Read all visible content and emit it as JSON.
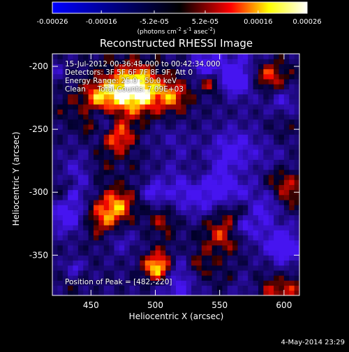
{
  "colorbar": {
    "tick_labels": [
      "-0.00026",
      "-0.00016",
      "-5.2e-05",
      "5.2e-05",
      "0.00016",
      "0.00026"
    ],
    "tick_values": [
      -0.00026,
      -0.00016,
      -5.2e-05,
      5.2e-05,
      0.00016,
      0.00026
    ],
    "units_prefix": "(photons cm",
    "units_sup1": "-2",
    "units_mid1": " s",
    "units_sup2": "-1",
    "units_mid2": " asec",
    "units_sup3": "-2",
    "units_suffix": ")",
    "range": [
      -0.00026,
      0.00026
    ],
    "colors": [
      "#0000ff",
      "#000000",
      "#ff0000",
      "#ffff00",
      "#ffffff"
    ]
  },
  "plot": {
    "title": "Reconstructed RHESSI Image",
    "info_lines": [
      "15-Jul-2012 00:36:48.000 to 00:42:34.000",
      "Detectors: 3F 5F 6F 7F 8F 9F, Att 0",
      "Energy Range: 25.0 - 50.0 keV",
      "Clean     Total Counts: 7.09E+03"
    ],
    "peak_text": "Position of Peak = [482,-220]",
    "footer": "4-May-2014 23:29"
  },
  "chart_data": {
    "type": "heatmap",
    "title": "Reconstructed RHESSI Image",
    "xlabel": "Heliocentric X (arcsec)",
    "ylabel": "Heliocentric Y (arcsec)",
    "xlim": [
      420,
      612
    ],
    "ylim": [
      -382,
      -190
    ],
    "xticks": [
      450,
      500,
      550,
      600
    ],
    "yticks": [
      -200,
      -250,
      -300,
      -350
    ],
    "xtick_labels": [
      "450",
      "500",
      "550",
      "600"
    ],
    "ytick_labels": [
      "-200",
      "-250",
      "-300",
      "-350"
    ],
    "peak": {
      "x": 482,
      "y": -220
    },
    "colormap": [
      "#0000ff",
      "#000000",
      "#ff0000",
      "#ffff00",
      "#ffffff"
    ],
    "zrange": [
      -0.00026,
      0.00026
    ]
  }
}
